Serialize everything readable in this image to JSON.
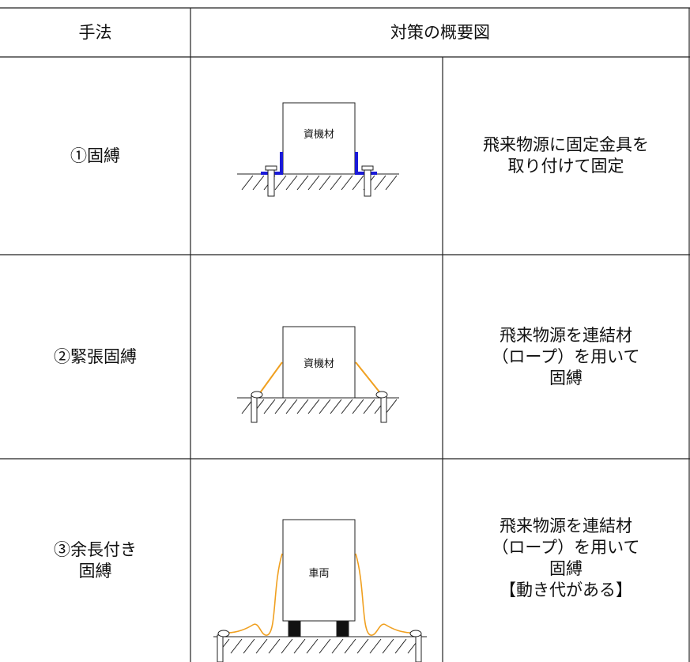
{
  "table": {
    "header": [
      "手法",
      "対策の概要図"
    ],
    "rows": [
      {
        "method": [
          "①固縛"
        ],
        "figure_label": "資機材",
        "description": [
          "飛来物源に固定金具を",
          "取り付けて固定"
        ]
      },
      {
        "method": [
          "②緊張固縛"
        ],
        "figure_label": "資機材",
        "description": [
          "飛来物源を連結材",
          "（ロープ）を用いて",
          "固縛"
        ]
      },
      {
        "method": [
          "③余長付き",
          "固縛"
        ],
        "figure_label": "車両",
        "description": [
          "飛来物源を連結材",
          "（ロープ）を用いて",
          "固縛",
          "【動き代がある】"
        ]
      }
    ]
  }
}
